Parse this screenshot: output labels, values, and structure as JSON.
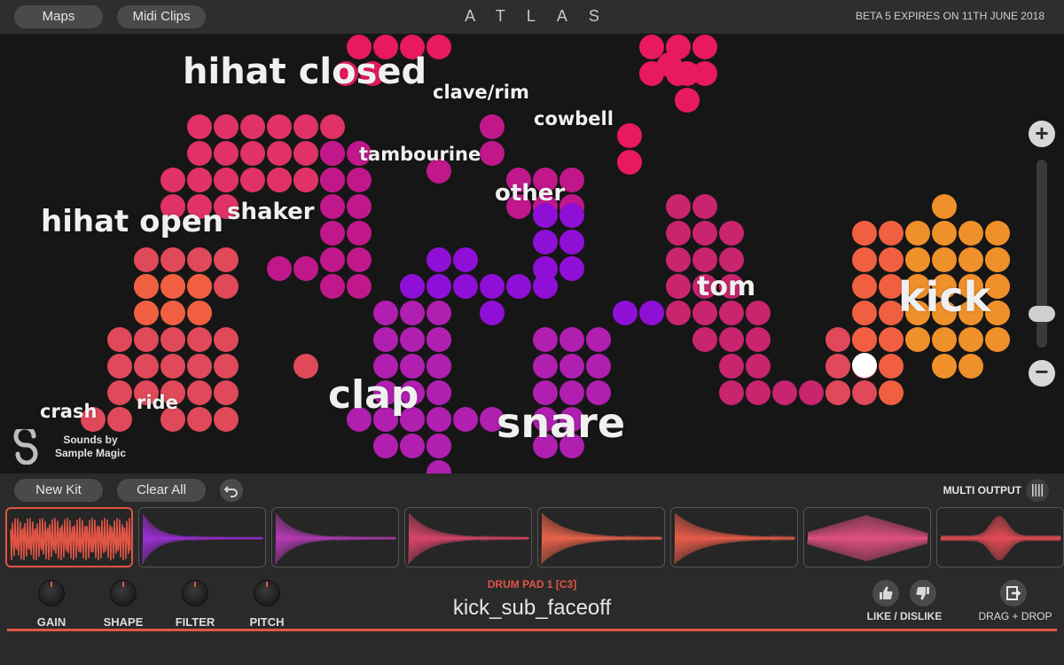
{
  "topbar": {
    "tabs": [
      {
        "label": "Maps"
      },
      {
        "label": "Midi Clips"
      }
    ],
    "title": "ATLAS",
    "beta_notice": "BETA 5 EXPIRES ON 11TH JUNE 2018"
  },
  "map": {
    "labels": [
      {
        "text": "hihat closed"
      },
      {
        "text": "clave/rim"
      },
      {
        "text": "cowbell"
      },
      {
        "text": "tambourine"
      },
      {
        "text": "other"
      },
      {
        "text": "shaker"
      },
      {
        "text": "hihat open"
      },
      {
        "text": "tom"
      },
      {
        "text": "kick"
      },
      {
        "text": "clap"
      },
      {
        "text": "snare"
      },
      {
        "text": "crash"
      },
      {
        "text": "ride"
      }
    ],
    "brand_line1": "Sounds by",
    "brand_line2": "Sample Magic",
    "zoom_level": 0.15,
    "colors": {
      "pink": "#e8195e",
      "magenta": "#c0188a",
      "purple": "#8f0fd6",
      "red": "#e34848",
      "orange": "#f0902a",
      "selected": "#ffffff"
    }
  },
  "kit": {
    "new_kit_label": "New Kit",
    "clear_all_label": "Clear All",
    "multi_output_label": "MULTI OUTPUT"
  },
  "pads": [
    {
      "color": "#e25545",
      "selected": true
    },
    {
      "color": "#9d2fd6",
      "selected": false
    },
    {
      "color": "#b43bb4",
      "selected": false
    },
    {
      "color": "#d9456a",
      "selected": false
    },
    {
      "color": "#e8624a",
      "selected": false
    },
    {
      "color": "#e85c4a",
      "selected": false
    },
    {
      "color": "#e05080",
      "selected": false
    },
    {
      "color": "#e24b55",
      "selected": false
    }
  ],
  "controls": {
    "knobs": [
      {
        "label": "GAIN"
      },
      {
        "label": "SHAPE"
      },
      {
        "label": "FILTER"
      },
      {
        "label": "PITCH"
      }
    ],
    "pad_name": "DRUM PAD 1  [C3]",
    "sample_name": "kick_sub_faceoff",
    "like_label": "LIKE / DISLIKE",
    "drag_label": "DRAG + DROP"
  }
}
